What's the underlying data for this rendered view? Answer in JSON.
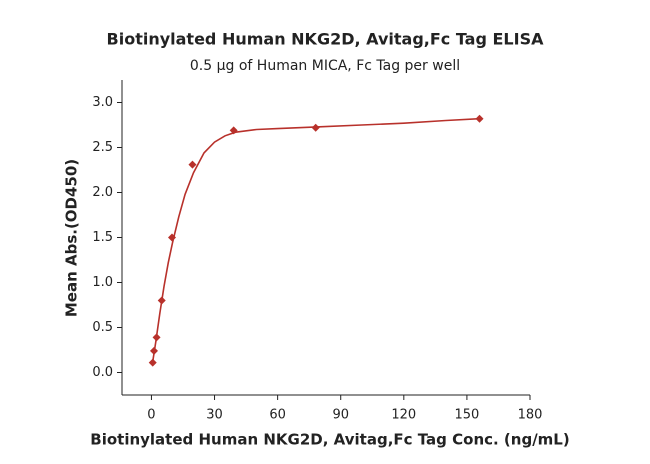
{
  "chart_data": {
    "type": "scatter",
    "title": "Biotinylated Human NKG2D, Avitag,Fc Tag ELISA",
    "subtitle": "0.5 µg of Human MICA, Fc Tag per well",
    "x_label": "Biotinylated Human NKG2D, Avitag,Fc Tag Conc. (ng/mL)",
    "y_label": "Mean Abs.(OD450)",
    "x": [
      0.61,
      1.22,
      2.44,
      4.88,
      9.77,
      19.5,
      39.1,
      78.1,
      156
    ],
    "values": [
      0.11,
      0.24,
      0.39,
      0.8,
      1.5,
      2.31,
      2.69,
      2.72,
      2.82
    ],
    "color": "#b8312b",
    "curve": {
      "x": [
        0.6,
        2,
        4,
        6,
        8,
        10,
        13,
        16,
        20,
        25,
        30,
        35,
        40,
        50,
        60,
        80,
        100,
        120,
        140,
        156
      ],
      "values": [
        0.12,
        0.33,
        0.66,
        0.96,
        1.22,
        1.44,
        1.73,
        1.98,
        2.22,
        2.44,
        2.56,
        2.63,
        2.67,
        2.7,
        2.71,
        2.73,
        2.75,
        2.77,
        2.8,
        2.82
      ]
    },
    "xlim": [
      -14,
      180
    ],
    "xticks": [
      0,
      30,
      60,
      90,
      120,
      150,
      180
    ],
    "ylim": [
      -0.25,
      3.25
    ],
    "yticks": [
      {
        "value": 0,
        "label": "0.0"
      },
      0.5,
      {
        "value": 1,
        "label": "1.0"
      },
      1.5,
      {
        "value": 2,
        "label": "2.0"
      },
      2.5,
      {
        "value": 3,
        "label": "3.0"
      }
    ]
  }
}
